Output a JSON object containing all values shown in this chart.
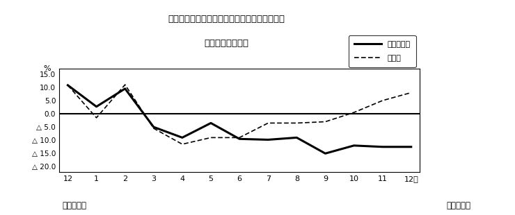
{
  "title_line1": "第２図　所定外労働時間　対前年同月比の推移",
  "title_line2": "（規模５人以上）",
  "xlabel_months": [
    "12",
    "1",
    "2",
    "3",
    "4",
    "5",
    "6",
    "7",
    "8",
    "9",
    "10",
    "11",
    "12月"
  ],
  "xlabel_year_left": "平成２２年",
  "xlabel_year_right": "平成２３年",
  "legend_solid": "調査産業計",
  "legend_dashed": "製造業",
  "series_solid": [
    10.8,
    2.7,
    9.5,
    -5.0,
    -9.0,
    -3.5,
    -9.5,
    -9.8,
    -9.0,
    -15.0,
    -12.0,
    -12.5,
    -12.5
  ],
  "series_dashed": [
    10.8,
    -1.5,
    11.0,
    -5.5,
    -11.5,
    -9.0,
    -9.0,
    -3.5,
    -3.5,
    -3.0,
    0.5,
    5.0,
    8.0
  ],
  "ylim": [
    -22,
    17
  ],
  "yticks": [
    15.0,
    10.0,
    5.0,
    0.0,
    -5.0,
    -10.0,
    -15.0,
    -20.0
  ],
  "ytick_labels": [
    "15.0",
    "10.0",
    "5.0",
    "0.0",
    "△ 5.0",
    "△ 10.0",
    "△ 15.0",
    "△ 20.0"
  ],
  "percent_label": "%",
  "background_color": "#ffffff",
  "line_color": "#000000",
  "zero_line_color": "#000000"
}
